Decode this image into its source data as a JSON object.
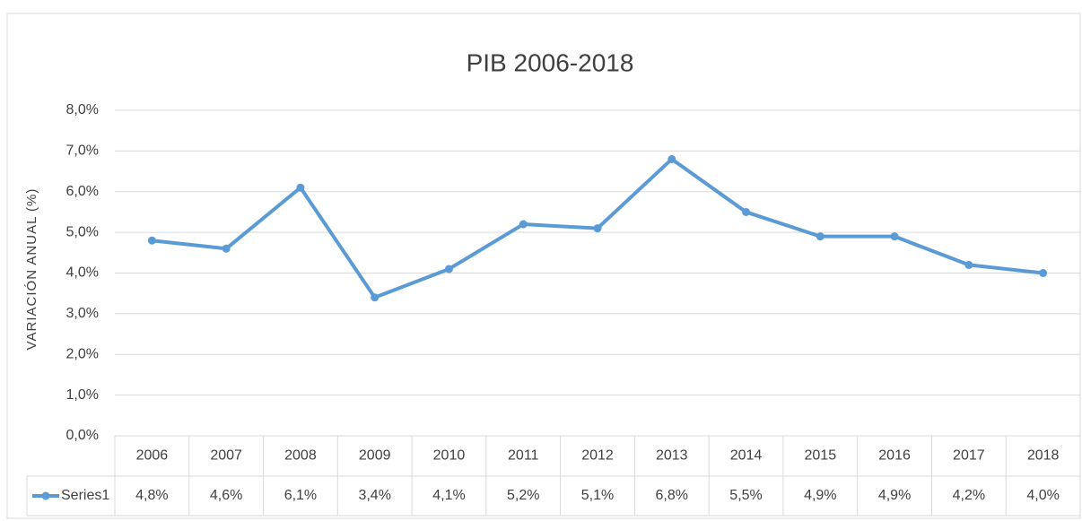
{
  "chart_data": {
    "type": "line",
    "title": "PIB 2006-2018",
    "y_label": "VARIACIÓN ANUAL (%)",
    "categories": [
      "2006",
      "2007",
      "2008",
      "2009",
      "2010",
      "2011",
      "2012",
      "2013",
      "2014",
      "2015",
      "2016",
      "2017",
      "2018"
    ],
    "series": [
      {
        "name": "Series1",
        "color": "#5b9bd5",
        "values": [
          4.8,
          4.6,
          6.1,
          3.4,
          4.1,
          5.2,
          5.1,
          6.8,
          5.5,
          4.9,
          4.9,
          4.2,
          4.0
        ],
        "value_labels": [
          "4,8%",
          "4,6%",
          "6,1%",
          "3,4%",
          "4,1%",
          "5,2%",
          "5,1%",
          "6,8%",
          "5,5%",
          "4,9%",
          "4,9%",
          "4,2%",
          "4,0%"
        ]
      }
    ],
    "ylim": [
      0,
      8
    ],
    "yticks": [
      {
        "value": 0,
        "label": "0,0%"
      },
      {
        "value": 1,
        "label": "1,0%"
      },
      {
        "value": 2,
        "label": "2,0%"
      },
      {
        "value": 3,
        "label": "3,0%"
      },
      {
        "value": 4,
        "label": "4,0%"
      },
      {
        "value": 5,
        "label": "5,0%"
      },
      {
        "value": 6,
        "label": "6,0%"
      },
      {
        "value": 7,
        "label": "7,0%"
      },
      {
        "value": 8,
        "label": "8,0%"
      }
    ],
    "grid": true
  }
}
